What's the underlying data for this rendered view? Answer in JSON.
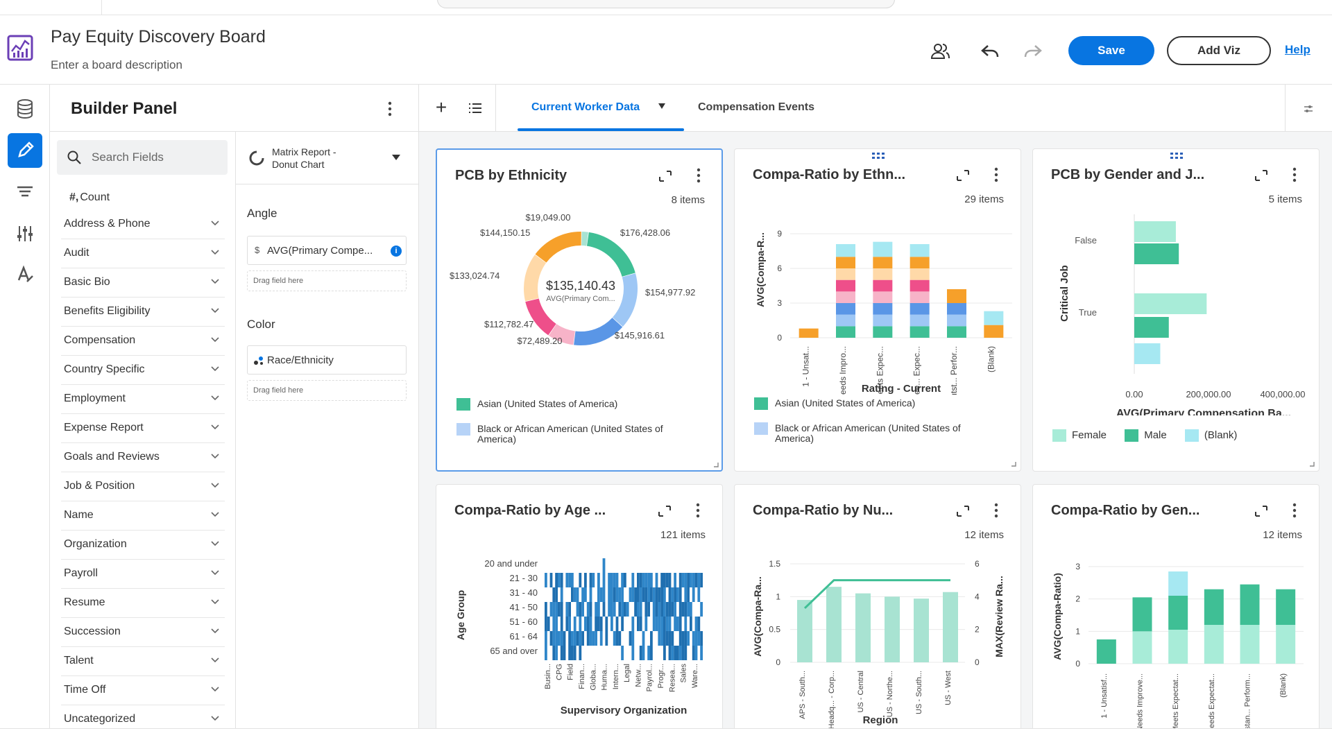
{
  "app": {
    "title": "Pay Equity Discovery Board",
    "description": "Enter a board description",
    "save_label": "Save",
    "add_viz_label": "Add Viz",
    "help_label": "Help",
    "accent": "#0875e1"
  },
  "rail": {
    "icons": [
      "database-icon",
      "pencil-icon",
      "filter-icon",
      "sliders-icon",
      "format-icon"
    ],
    "active": "pencil-icon"
  },
  "builder": {
    "title": "Builder Panel",
    "search_placeholder": "Search Fields",
    "count_label": "Count",
    "field_groups": [
      "Address & Phone",
      "Audit",
      "Basic Bio",
      "Benefits Eligibility",
      "Compensation",
      "Country Specific",
      "Employment",
      "Expense Report",
      "Goals and Reviews",
      "Job & Position",
      "Name",
      "Organization",
      "Payroll",
      "Resume",
      "Succession",
      "Talent",
      "Time Off",
      "Uncategorized"
    ],
    "viz_type_line1": "Matrix Report -",
    "viz_type_line2": "Donut Chart",
    "angle_label": "Angle",
    "angle_field": "AVG(Primary Compe...",
    "angle_prefix": "$",
    "color_label": "Color",
    "color_field": "Race/Ethnicity",
    "drop_hint": "Drag field here"
  },
  "tabs": [
    {
      "label": "Current Worker Data",
      "active": true
    },
    {
      "label": "Compensation Events",
      "active": false
    }
  ],
  "cards": {
    "donut": {
      "title": "PCB by Ethnicity",
      "items": "8 items",
      "center_value": "$135,140.43",
      "center_label": "AVG(Primary Com..."
    },
    "stacked": {
      "title": "Compa-Ratio by Ethn...",
      "items": "29 items",
      "ylabel": "AVG(Compa-R...",
      "xlabel": "Rating - Current"
    },
    "hbar": {
      "title": "PCB by Gender and J...",
      "items": "5 items",
      "ylabel": "Critical Job",
      "xlabel": "AVG(Primary Compensation Ba..."
    },
    "heat": {
      "title": "Compa-Ratio by Age ...",
      "items": "121 items",
      "ylabel": "Age Group",
      "xlabel": "Supervisory Organization"
    },
    "combo": {
      "title": "Compa-Ratio by Nu...",
      "items": "12 items",
      "ylabel": "AVG(Compa-Ra...",
      "y2label": "MAX(Review Ra...",
      "xlabel": "Region"
    },
    "gender": {
      "title": "Compa-Ratio by Gen...",
      "items": "12 items",
      "ylabel": "AVG(Compa-Ratio)"
    }
  },
  "legends": {
    "ethnicity": [
      "Asian (United States of America)",
      "Black or African American (United States of America)"
    ],
    "gender": [
      "Female",
      "Male",
      "(Blank)"
    ]
  },
  "chart_data": [
    {
      "type": "pie",
      "title": "PCB by Ethnicity",
      "labels": [
        "$19,049.00",
        "$176,428.06",
        "$154,977.92",
        "$145,916.61",
        "$72,489.20",
        "$112,782.47",
        "$133,024.74",
        "$144,150.15"
      ],
      "values": [
        19049.0,
        176428.06,
        154977.92,
        145916.61,
        72489.2,
        112782.47,
        133024.74,
        144150.15
      ],
      "colors": [
        "#a8e3d2",
        "#3fbf95",
        "#9ec7f5",
        "#5a96e6",
        "#f7b3c8",
        "#ee4f8a",
        "#ffd9a8",
        "#f6a02a"
      ],
      "center": "$135,140.43"
    },
    {
      "type": "bar",
      "stacked": true,
      "title": "Compa-Ratio by Ethn...",
      "categories": [
        "1 - Unsat...",
        "2 - Needs Impro...",
        "3 - Meets Expec...",
        "4 - Excee... Expec...",
        "5 - Outst... Perfor...",
        "(Blank)"
      ],
      "yticks": [
        0,
        3,
        6,
        9
      ],
      "ylim": [
        0,
        9
      ],
      "series": [
        {
          "color": "#3fbf95",
          "values": [
            0,
            1,
            1,
            1,
            1,
            0
          ]
        },
        {
          "color": "#9ec7f5",
          "values": [
            0,
            1,
            1,
            1,
            1,
            0
          ]
        },
        {
          "color": "#5a96e6",
          "values": [
            0,
            1,
            1,
            1,
            1,
            0
          ]
        },
        {
          "color": "#f7b3c8",
          "values": [
            0,
            1,
            1,
            1,
            0,
            0
          ]
        },
        {
          "color": "#ee4f8a",
          "values": [
            0,
            1,
            1,
            1,
            0,
            0
          ]
        },
        {
          "color": "#ffd9a8",
          "values": [
            0,
            1,
            1,
            1,
            0,
            0
          ]
        },
        {
          "color": "#f6a02a",
          "values": [
            0.8,
            1,
            1,
            1,
            1.2,
            1.1
          ]
        },
        {
          "color": "#a6e8f2",
          "values": [
            0,
            1.1,
            1.3,
            1.1,
            0,
            1.2
          ]
        }
      ]
    },
    {
      "type": "bar",
      "orientation": "horizontal",
      "title": "PCB by Gender and J...",
      "categories": [
        "False",
        "True"
      ],
      "xticks": [
        "0.00",
        "200,000.00",
        "400,000.00"
      ],
      "xlim": [
        0,
        400000
      ],
      "series": [
        {
          "name": "Female",
          "color": "#a8ecd8",
          "values": [
            112000,
            195000
          ]
        },
        {
          "name": "Male",
          "color": "#3fbf95",
          "values": [
            120000,
            93000
          ]
        },
        {
          "name": "(Blank)",
          "color": "#a6e8f2",
          "values": [
            0,
            70000
          ]
        }
      ]
    },
    {
      "type": "heatmap",
      "title": "Compa-Ratio by Age ...",
      "y_categories": [
        "20 and under",
        "21 - 30",
        "31 - 40",
        "41 - 50",
        "51 - 60",
        "61 - 64",
        "65 and over"
      ],
      "x_categories": [
        "Busin...",
        "CPG",
        "Field",
        "Finan...",
        "Globa...",
        "Huma...",
        "Intern...",
        "Legal",
        "Netw...",
        "Payrol...",
        "Progr...",
        "Resea...",
        "Sales",
        "Ware..."
      ],
      "color": "#1f6fb0"
    },
    {
      "type": "bar",
      "title": "Compa-Ratio by Nu...",
      "categories": [
        "APS - South...",
        "Headq... - Corp...",
        "US - Central",
        "US - Northe...",
        "US - South...",
        "US - West"
      ],
      "values": [
        0.95,
        1.15,
        1.05,
        1.0,
        0.97,
        1.07
      ],
      "yticks": [
        "0",
        "0.5",
        "1",
        "1.5"
      ],
      "ylim": [
        0,
        1.5
      ],
      "line_values": [
        3.3,
        5,
        5,
        5,
        5,
        5
      ],
      "y2ticks": [
        "0",
        "2",
        "4",
        "6"
      ],
      "y2lim": [
        0,
        6
      ],
      "bar_color": "#a8e3d2",
      "line_color": "#3fbf95"
    },
    {
      "type": "bar",
      "stacked": true,
      "title": "Compa-Ratio by Gen...",
      "categories": [
        "1 - Unsatisf...",
        "2 - Needs Improve...",
        "3 - Meets Expectat...",
        "4 - Exceeds Expectat...",
        "5 - Outstan... Perform...",
        "(Blank)"
      ],
      "yticks": [
        "0",
        "1",
        "2",
        "3"
      ],
      "ylim": [
        0,
        3
      ],
      "series": [
        {
          "name": "Female",
          "color": "#a8ecd8",
          "values": [
            0,
            1.0,
            1.05,
            1.2,
            1.2,
            1.2
          ]
        },
        {
          "name": "Male",
          "color": "#3fbf95",
          "values": [
            0.75,
            1.05,
            1.05,
            1.1,
            1.25,
            1.1
          ]
        },
        {
          "name": "(Blank)",
          "color": "#a6e8f2",
          "values": [
            0,
            0,
            0.75,
            0,
            0,
            0
          ]
        }
      ]
    }
  ]
}
